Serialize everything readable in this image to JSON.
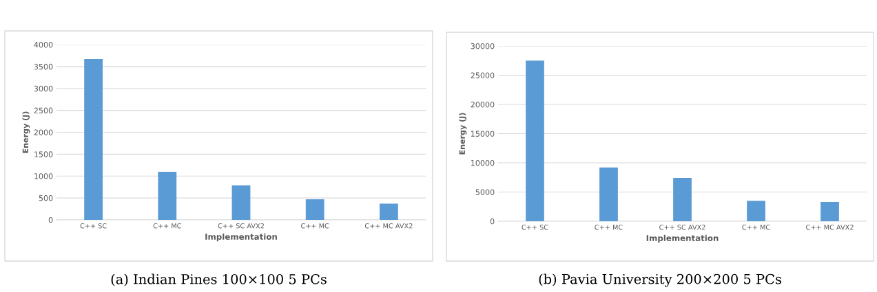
{
  "chart_data": [
    {
      "type": "bar",
      "title": "(a) Indian Pines 100×100 5 PCs",
      "xlabel": "Implementation",
      "ylabel": "Energy (J)",
      "categories": [
        "C++ SC",
        "C++ MC",
        "C++ SC AVX2",
        "C++ MC",
        "C++ MC AVX2"
      ],
      "values": [
        3670,
        1100,
        790,
        470,
        370
      ],
      "color": "#5b9bd5",
      "ylim": [
        0,
        4000
      ],
      "yticks": [
        0,
        500,
        1000,
        1500,
        2000,
        2500,
        3000,
        3500,
        4000
      ],
      "grid": "y"
    },
    {
      "type": "bar",
      "title": "(b) Pavia University 200×200 5 PCs",
      "xlabel": "Implementation",
      "ylabel": "Energy (J)",
      "categories": [
        "C++ SC",
        "C++ MC",
        "C++ SC AVX2",
        "C++ MC",
        "C++ MC AVX2"
      ],
      "values": [
        27500,
        9200,
        7400,
        3500,
        3300
      ],
      "color": "#5b9bd5",
      "ylim": [
        0,
        30000
      ],
      "yticks": [
        0,
        5000,
        10000,
        15000,
        20000,
        25000,
        30000
      ],
      "grid": "y"
    }
  ]
}
